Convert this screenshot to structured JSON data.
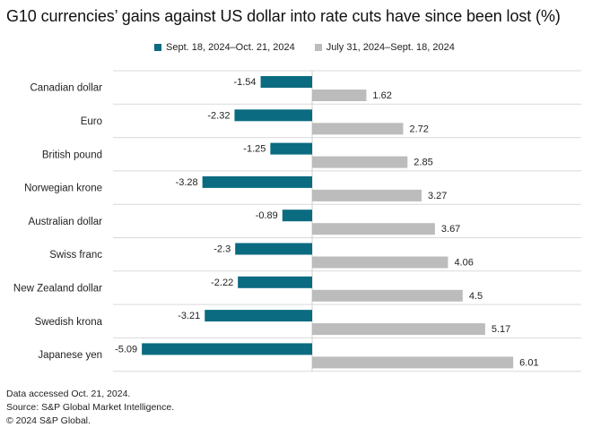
{
  "chart_data": {
    "type": "bar",
    "orientation": "horizontal",
    "title": "G10 currencies’ gains against US dollar into rate cuts have since been lost (%)",
    "categories": [
      "Canadian dollar",
      "Euro",
      "British pound",
      "Norwegian krone",
      "Australian dollar",
      "Swiss franc",
      "New Zealand dollar",
      "Swedish krona",
      "Japanese yen"
    ],
    "series": [
      {
        "name": "Sept. 18, 2024–Oct. 21, 2024",
        "color": "#0b6b80",
        "values": [
          -1.54,
          -2.32,
          -1.25,
          -3.28,
          -0.89,
          -2.3,
          -2.22,
          -3.21,
          -5.09
        ]
      },
      {
        "name": "July 31, 2024–Sept. 18, 2024",
        "color": "#bcbcbc",
        "values": [
          1.62,
          2.72,
          2.85,
          3.27,
          3.67,
          4.06,
          4.5,
          5.17,
          6.01
        ]
      }
    ],
    "series_labels": [
      [
        "-1.54",
        "-2.32",
        "-1.25",
        "-3.28",
        "-0.89",
        "-2.3",
        "-2.22",
        "-3.21",
        "-5.09"
      ],
      [
        "1.62",
        "2.72",
        "2.85",
        "3.27",
        "3.67",
        "4.06",
        "4.5",
        "5.17",
        "6.01"
      ]
    ],
    "xlim": [
      -5.09,
      6.01
    ],
    "xlabel": "",
    "ylabel": "",
    "legend_position": "top",
    "grid": "horizontal separators"
  },
  "footnotes": [
    "Data accessed Oct. 21, 2024.",
    "Source: S&P Global Market Intelligence.",
    "© 2024 S&P Global."
  ]
}
